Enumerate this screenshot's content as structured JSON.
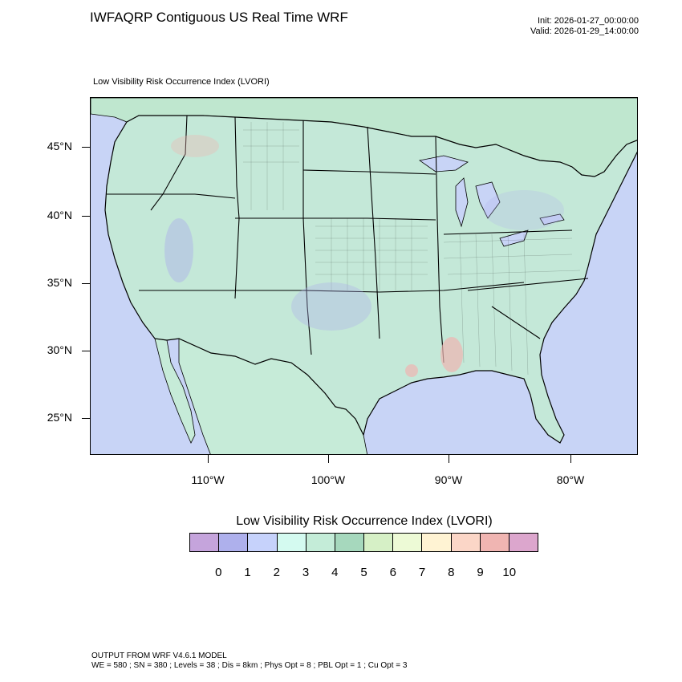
{
  "header": {
    "title": "IWFAQRP Contiguous US Real Time WRF",
    "init": "Init: 2026-01-27_00:00:00",
    "valid": "Valid: 2026-01-29_14:00:00"
  },
  "map": {
    "subtitle": "Low Visibility Risk Occurrence Index   (LVORI)",
    "lat_labels": [
      "45°N",
      "40°N",
      "35°N",
      "30°N",
      "25°N"
    ],
    "lon_labels": [
      "110°W",
      "100°W",
      "90°W",
      "80°W"
    ],
    "colors": {
      "ocean": "#c8d4f6",
      "land": "#c4e8d8",
      "canada": "#bfe7cf",
      "mexico": "#c6ebd8",
      "boundary": "#000000"
    }
  },
  "legend": {
    "title": "Low Visibility Risk Occurrence Index  (LVORI)",
    "labels": [
      "0",
      "1",
      "2",
      "3",
      "4",
      "5",
      "6",
      "7",
      "8",
      "9",
      "10"
    ],
    "colors": [
      "#c5a4dc",
      "#aeb0ec",
      "#c6d2fb",
      "#d4faf0",
      "#c4ecd8",
      "#a6d8bd",
      "#d6f0c6",
      "#edfad6",
      "#fff3d3",
      "#fbd6c7",
      "#f0b5b2",
      "#dca6cd"
    ]
  },
  "footer": {
    "line1": "OUTPUT FROM WRF V4.6.1 MODEL",
    "line2": "WE = 580 ; SN = 380 ; Levels = 38 ; Dis = 8km ; Phys Opt = 8 ; PBL Opt = 1 ; Cu Opt = 3"
  }
}
